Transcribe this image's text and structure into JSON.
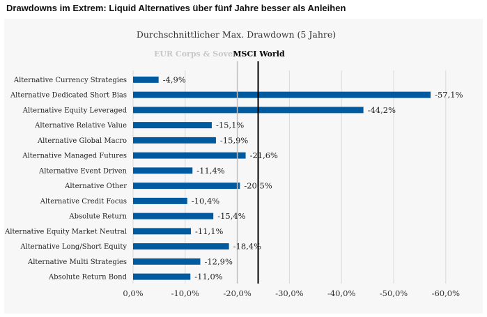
{
  "headline": "Drawdowns im Extrem: Liquid Alternatives über fünf Jahre besser als Anleihen",
  "chart_data": {
    "type": "bar",
    "orientation": "horizontal",
    "title": "Durchschnittlicher Max. Drawdown (5 Jahre)",
    "categories": [
      "Alternative Currency Strategies",
      "Alternative Dedicated Short Bias",
      "Alternative Equity Leveraged",
      "Alternative Relative Value",
      "Alternative Global Macro",
      "Alternative Managed Futures",
      "Alternative Event Driven",
      "Alternative Other",
      "Alternative Credit Focus",
      "Absolute Return",
      "Alternative Equity Market Neutral",
      "Alternative Long/Short Equity",
      "Alternative Multi Strategies",
      "Absolute Return Bond"
    ],
    "values": [
      -4.9,
      -57.1,
      -44.2,
      -15.1,
      -15.9,
      -21.6,
      -11.4,
      -20.5,
      -10.4,
      -15.4,
      -11.1,
      -18.4,
      -12.9,
      -11.0
    ],
    "value_labels": [
      "-4,9%",
      "-57,1%",
      "-44,2%",
      "-15,1%",
      "-15,9%",
      "-21,6%",
      "-11,4%",
      "-20,5%",
      "-10,4%",
      "-15,4%",
      "-11,1%",
      "-18,4%",
      "-12,9%",
      "-11,0%"
    ],
    "xlim": [
      0,
      -60
    ],
    "x_ticks": [
      0,
      -10,
      -20,
      -30,
      -40,
      -50,
      -60
    ],
    "x_tick_labels": [
      "0,0%",
      "-10,0%",
      "-20,0%",
      "-30,0%",
      "-40,0%",
      "-50,0%",
      "-60,0%"
    ],
    "grid": true,
    "reference_lines": [
      {
        "label": "EUR Corps & Sover.",
        "value": -20.0,
        "color": "#bfbfbf"
      },
      {
        "label": "MSCI World",
        "value": -24.0,
        "color": "#000000"
      }
    ],
    "bar_color": "#005aa0",
    "gridline_color": "#d9d9d9"
  }
}
